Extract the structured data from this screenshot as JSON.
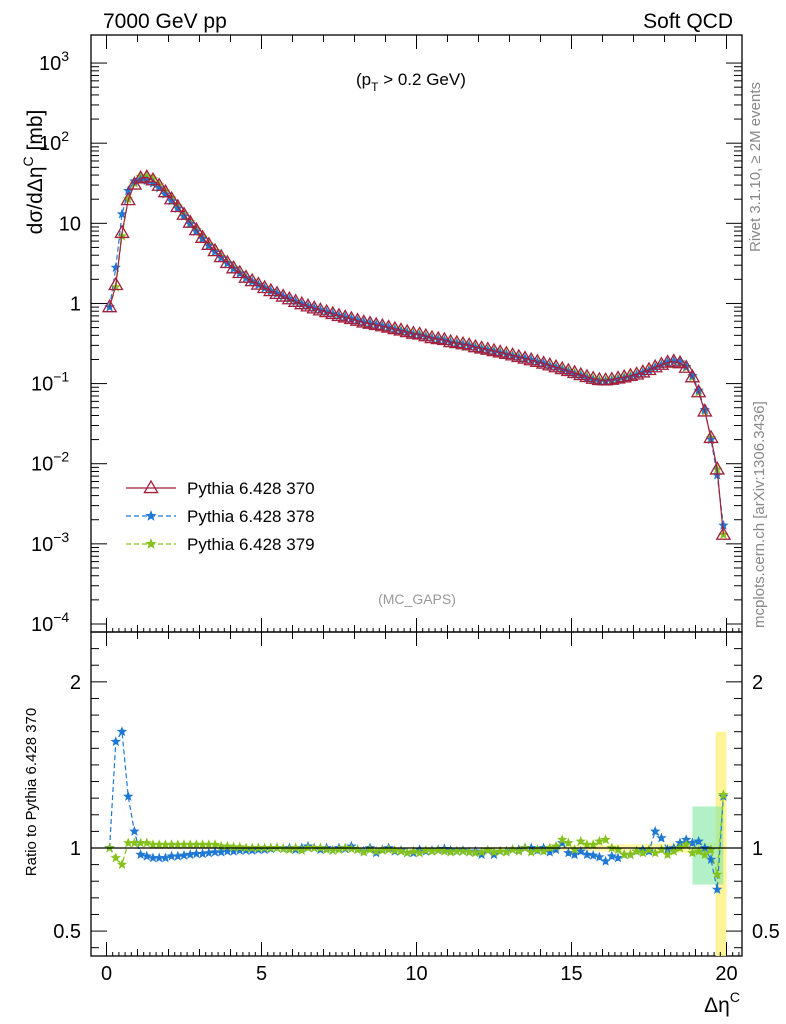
{
  "header": {
    "left": "7000 GeV pp",
    "right": "Soft QCD",
    "cut_label": "(p",
    "cut_sub": "T",
    "cut_rest": " > 0.2 GeV)",
    "analysis": "(MC_GAPS)"
  },
  "side_labels": {
    "rivet": "Rivet 3.1.10, ≥ 2M events",
    "mcplots": "mcplots.cern.ch [arXiv:1306.3436]"
  },
  "axes": {
    "ylabel_main": "dσ/dΔη",
    "ylabel_main_sup": "C",
    "ylabel_main_unit": " [mb]",
    "ylabel_ratio": "Ratio to Pythia 6.428 370",
    "xlabel": "Δη",
    "xlabel_sup": "C",
    "xlim": [
      -0.5,
      20.5
    ],
    "ylim_main_log10": [
      -4.1,
      3.35
    ],
    "ylim_ratio": [
      0.35,
      2.3
    ],
    "x_ticks": [
      "0",
      "5",
      "10",
      "15",
      "20"
    ],
    "y_ticks_main": [
      {
        "v": 3,
        "base": "10",
        "exp": "3"
      },
      {
        "v": 2,
        "base": "10",
        "exp": "2"
      },
      {
        "v": 1,
        "base": "10",
        "exp": ""
      },
      {
        "v": 0,
        "base": "1",
        "exp": ""
      },
      {
        "v": -1,
        "base": "10",
        "exp": "−1"
      },
      {
        "v": -2,
        "base": "10",
        "exp": "−2"
      },
      {
        "v": -3,
        "base": "10",
        "exp": "−3"
      },
      {
        "v": -4,
        "base": "10",
        "exp": "−4"
      }
    ],
    "y_ticks_ratio": [
      "0.5",
      "1",
      "2"
    ]
  },
  "legend": [
    {
      "label": "Pythia 6.428 370",
      "color": "#a31f3c",
      "marker": "triangle",
      "dash": "solid"
    },
    {
      "label": "Pythia 6.428 378",
      "color": "#1f78d4",
      "marker": "star",
      "dash": "dashed"
    },
    {
      "label": "Pythia 6.428 379",
      "color": "#85c21c",
      "marker": "star",
      "dash": "dashed"
    }
  ],
  "chart_data": {
    "type": "line",
    "log_y": true,
    "x": [
      0.1,
      0.3,
      0.5,
      0.7,
      0.9,
      1.1,
      1.3,
      1.5,
      1.7,
      1.9,
      2.1,
      2.3,
      2.5,
      2.7,
      2.9,
      3.1,
      3.3,
      3.5,
      3.7,
      3.9,
      4.1,
      4.3,
      4.5,
      4.7,
      4.9,
      5.1,
      5.3,
      5.5,
      5.7,
      5.9,
      6.1,
      6.3,
      6.5,
      6.7,
      6.9,
      7.1,
      7.3,
      7.5,
      7.7,
      7.9,
      8.1,
      8.3,
      8.5,
      8.7,
      8.9,
      9.1,
      9.3,
      9.5,
      9.7,
      9.9,
      10.1,
      10.3,
      10.5,
      10.7,
      10.9,
      11.1,
      11.3,
      11.5,
      11.7,
      11.9,
      12.1,
      12.3,
      12.5,
      12.7,
      12.9,
      13.1,
      13.3,
      13.5,
      13.7,
      13.9,
      14.1,
      14.3,
      14.5,
      14.7,
      14.9,
      15.1,
      15.3,
      15.5,
      15.7,
      15.9,
      16.1,
      16.3,
      16.5,
      16.7,
      16.9,
      17.1,
      17.3,
      17.5,
      17.7,
      17.9,
      18.1,
      18.3,
      18.5,
      18.7,
      18.9,
      19.1,
      19.3,
      19.5,
      19.7,
      19.9
    ],
    "series": [
      {
        "name": "Pythia 6.428 370",
        "values": [
          0.9,
          1.7,
          7.6,
          19.5,
          30.5,
          36.5,
          37.5,
          34.5,
          29.5,
          24.5,
          20.0,
          16.0,
          12.8,
          10.2,
          8.2,
          6.6,
          5.4,
          4.5,
          3.8,
          3.2,
          2.75,
          2.4,
          2.1,
          1.9,
          1.72,
          1.56,
          1.43,
          1.32,
          1.22,
          1.13,
          1.05,
          0.98,
          0.92,
          0.87,
          0.82,
          0.78,
          0.74,
          0.7,
          0.67,
          0.64,
          0.61,
          0.58,
          0.56,
          0.54,
          0.52,
          0.5,
          0.48,
          0.46,
          0.44,
          0.42,
          0.41,
          0.39,
          0.37,
          0.36,
          0.35,
          0.33,
          0.32,
          0.31,
          0.3,
          0.285,
          0.275,
          0.265,
          0.255,
          0.245,
          0.235,
          0.225,
          0.215,
          0.205,
          0.196,
          0.187,
          0.178,
          0.169,
          0.16,
          0.152,
          0.144,
          0.136,
          0.128,
          0.121,
          0.115,
          0.111,
          0.11,
          0.112,
          0.116,
          0.12,
          0.125,
          0.13,
          0.138,
          0.148,
          0.16,
          0.172,
          0.183,
          0.188,
          0.18,
          0.158,
          0.12,
          0.078,
          0.045,
          0.021,
          0.0085,
          0.0013
        ]
      },
      {
        "name": "Pythia 6.428 378",
        "values": [
          0.9,
          2.8,
          13.0,
          25.5,
          33.5,
          35.0,
          34.0,
          31.5,
          27.5,
          23.0,
          19.0,
          15.3,
          12.2,
          9.8,
          7.9,
          6.4,
          5.25,
          4.4,
          3.7,
          3.15,
          2.7,
          2.36,
          2.07,
          1.87,
          1.7,
          1.55,
          1.42,
          1.32,
          1.22,
          1.13,
          1.05,
          0.98,
          0.92,
          0.87,
          0.82,
          0.78,
          0.74,
          0.7,
          0.67,
          0.64,
          0.61,
          0.58,
          0.56,
          0.54,
          0.52,
          0.5,
          0.47,
          0.45,
          0.43,
          0.41,
          0.4,
          0.38,
          0.365,
          0.355,
          0.345,
          0.325,
          0.315,
          0.305,
          0.295,
          0.28,
          0.27,
          0.26,
          0.25,
          0.24,
          0.23,
          0.22,
          0.21,
          0.205,
          0.196,
          0.185,
          0.178,
          0.165,
          0.158,
          0.148,
          0.14,
          0.13,
          0.125,
          0.116,
          0.11,
          0.106,
          0.106,
          0.108,
          0.112,
          0.116,
          0.12,
          0.128,
          0.136,
          0.145,
          0.158,
          0.17,
          0.185,
          0.19,
          0.185,
          0.162,
          0.125,
          0.082,
          0.047,
          0.02,
          0.0072,
          0.0017
        ]
      },
      {
        "name": "Pythia 6.428 379",
        "values": [
          0.9,
          1.6,
          6.9,
          20.0,
          31.5,
          38.0,
          38.5,
          35.5,
          30.0,
          25.0,
          20.5,
          16.3,
          13.0,
          10.4,
          8.3,
          6.7,
          5.45,
          4.55,
          3.82,
          3.22,
          2.76,
          2.41,
          2.1,
          1.9,
          1.72,
          1.56,
          1.43,
          1.32,
          1.22,
          1.13,
          1.05,
          0.98,
          0.92,
          0.87,
          0.82,
          0.78,
          0.74,
          0.7,
          0.67,
          0.64,
          0.61,
          0.58,
          0.56,
          0.54,
          0.52,
          0.5,
          0.48,
          0.46,
          0.44,
          0.42,
          0.41,
          0.39,
          0.37,
          0.36,
          0.35,
          0.33,
          0.32,
          0.31,
          0.3,
          0.285,
          0.275,
          0.265,
          0.255,
          0.245,
          0.235,
          0.225,
          0.215,
          0.205,
          0.196,
          0.187,
          0.178,
          0.169,
          0.16,
          0.152,
          0.144,
          0.136,
          0.128,
          0.121,
          0.115,
          0.111,
          0.11,
          0.112,
          0.116,
          0.12,
          0.125,
          0.13,
          0.138,
          0.148,
          0.16,
          0.172,
          0.183,
          0.188,
          0.18,
          0.158,
          0.12,
          0.078,
          0.045,
          0.021,
          0.0085,
          0.0013
        ]
      }
    ],
    "ratio_series": [
      {
        "name": "Pythia 6.428 378",
        "values": [
          1.0,
          1.64,
          1.7,
          1.31,
          1.1,
          0.96,
          0.95,
          0.94,
          0.94,
          0.94,
          0.95,
          0.95,
          0.955,
          0.96,
          0.965,
          0.965,
          0.97,
          0.975,
          0.975,
          0.98,
          0.98,
          0.985,
          0.985,
          0.985,
          0.99,
          0.99,
          0.995,
          1.0,
          0.995,
          1.0,
          0.99,
          1.0,
          1.01,
          1.0,
          0.99,
          1.0,
          0.985,
          1.0,
          0.995,
          1.01,
          0.99,
          0.98,
          1.0,
          0.97,
          0.99,
          1.0,
          0.98,
          0.985,
          0.97,
          0.97,
          0.99,
          0.98,
          0.985,
          0.99,
          0.995,
          0.985,
          0.98,
          0.985,
          0.975,
          0.98,
          0.96,
          0.985,
          0.96,
          0.98,
          0.98,
          0.99,
          0.99,
          1.0,
          1.0,
          0.985,
          1.0,
          0.975,
          0.99,
          1.03,
          0.97,
          0.96,
          0.98,
          0.96,
          0.955,
          0.945,
          0.92,
          0.95,
          0.94,
          0.96,
          0.96,
          0.98,
          0.99,
          0.98,
          1.1,
          1.06,
          0.99,
          1.0,
          1.03,
          1.05,
          1.03,
          1.04,
          1.0,
          0.93,
          0.75,
          1.31
        ]
      },
      {
        "name": "Pythia 6.428 379",
        "values": [
          1.0,
          0.94,
          0.9,
          1.03,
          1.03,
          1.03,
          1.03,
          1.02,
          1.02,
          1.02,
          1.02,
          1.02,
          1.02,
          1.02,
          1.02,
          1.02,
          1.02,
          1.02,
          1.01,
          1.01,
          1.005,
          1.005,
          1.0,
          1.0,
          1.0,
          1.0,
          1.0,
          1.0,
          0.995,
          0.99,
          1.0,
          0.985,
          1.0,
          1.0,
          1.0,
          0.99,
          0.985,
          0.99,
          1.0,
          0.995,
          0.99,
          0.975,
          0.99,
          0.98,
          0.985,
          0.99,
          0.985,
          0.98,
          0.97,
          0.98,
          0.97,
          0.985,
          0.98,
          0.985,
          0.98,
          0.975,
          0.98,
          0.98,
          0.975,
          0.97,
          0.975,
          0.985,
          0.975,
          0.98,
          0.975,
          0.99,
          0.98,
          1.0,
          0.975,
          0.99,
          0.98,
          1.0,
          1.01,
          1.05,
          1.03,
          0.99,
          1.04,
          1.02,
          1.02,
          1.04,
          1.05,
          1.0,
          0.99,
          0.96,
          0.96,
          0.98,
          0.97,
          0.99,
          0.97,
          0.99,
          0.96,
          0.98,
          1.0,
          1.02,
          0.97,
          0.98,
          0.96,
          0.99,
          0.84,
          1.32
        ]
      }
    ]
  }
}
